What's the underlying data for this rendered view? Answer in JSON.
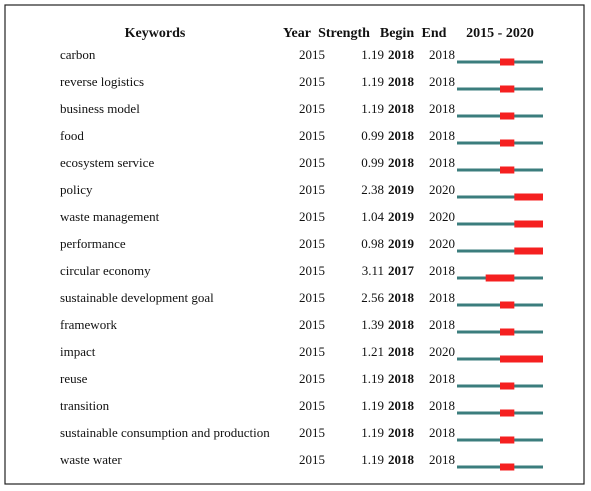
{
  "header": {
    "keywords": "Keywords",
    "year": "Year",
    "strength": "Strength",
    "begin": "Begin",
    "end": "End",
    "range": "2015 - 2020"
  },
  "rows": [
    {
      "keyword": "carbon",
      "year": 2015,
      "strength": 1.19,
      "begin": 2018,
      "end": 2018
    },
    {
      "keyword": "reverse logistics",
      "year": 2015,
      "strength": 1.19,
      "begin": 2018,
      "end": 2018
    },
    {
      "keyword": "business model",
      "year": 2015,
      "strength": 1.19,
      "begin": 2018,
      "end": 2018
    },
    {
      "keyword": "food",
      "year": 2015,
      "strength": 0.99,
      "begin": 2018,
      "end": 2018
    },
    {
      "keyword": "ecosystem service",
      "year": 2015,
      "strength": 0.99,
      "begin": 2018,
      "end": 2018
    },
    {
      "keyword": "policy",
      "year": 2015,
      "strength": 2.38,
      "begin": 2019,
      "end": 2020
    },
    {
      "keyword": "waste management",
      "year": 2015,
      "strength": 1.04,
      "begin": 2019,
      "end": 2020
    },
    {
      "keyword": "performance",
      "year": 2015,
      "strength": 0.98,
      "begin": 2019,
      "end": 2020
    },
    {
      "keyword": "circular economy",
      "year": 2015,
      "strength": 3.11,
      "begin": 2017,
      "end": 2018
    },
    {
      "keyword": "sustainable development goal",
      "year": 2015,
      "strength": 2.56,
      "begin": 2018,
      "end": 2018
    },
    {
      "keyword": "framework",
      "year": 2015,
      "strength": 1.39,
      "begin": 2018,
      "end": 2018
    },
    {
      "keyword": "impact",
      "year": 2015,
      "strength": 1.21,
      "begin": 2018,
      "end": 2020
    },
    {
      "keyword": "reuse",
      "year": 2015,
      "strength": 1.19,
      "begin": 2018,
      "end": 2018
    },
    {
      "keyword": "transition",
      "year": 2015,
      "strength": 1.19,
      "begin": 2018,
      "end": 2018
    },
    {
      "keyword": "sustainable consumption and production",
      "year": 2015,
      "strength": 1.19,
      "begin": 2018,
      "end": 2018
    },
    {
      "keyword": "waste water",
      "year": 2015,
      "strength": 1.19,
      "begin": 2018,
      "end": 2018
    }
  ]
}
